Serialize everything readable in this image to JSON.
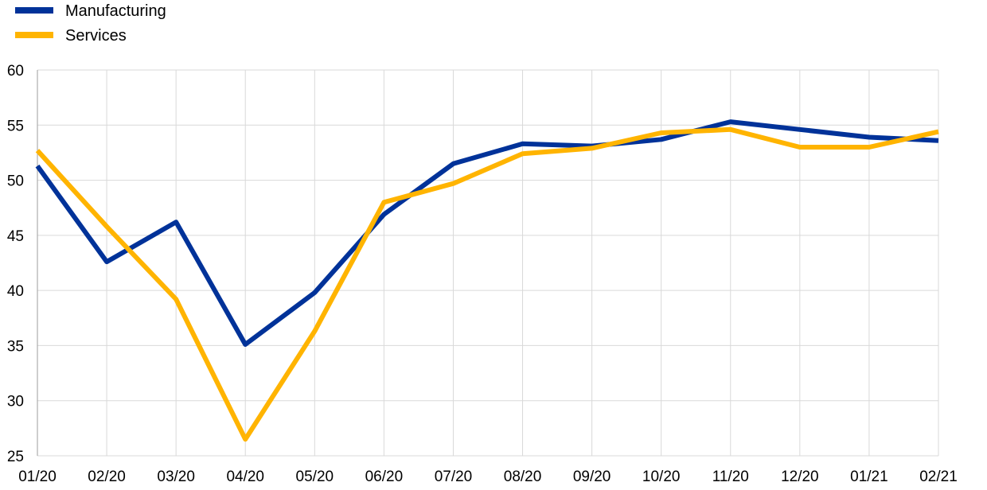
{
  "chart_data": {
    "type": "line",
    "title": "",
    "xlabel": "",
    "ylabel": "",
    "categories": [
      "01/20",
      "02/20",
      "03/20",
      "04/20",
      "05/20",
      "06/20",
      "07/20",
      "08/20",
      "09/20",
      "10/20",
      "11/20",
      "12/20",
      "01/21",
      "02/21"
    ],
    "series": [
      {
        "name": "Manufacturing",
        "color": "#003299",
        "values": [
          51.3,
          42.6,
          46.2,
          35.1,
          39.8,
          46.9,
          51.5,
          53.3,
          53.1,
          53.7,
          55.3,
          54.6,
          53.9,
          53.6
        ]
      },
      {
        "name": "Services",
        "color": "#FFB400",
        "values": [
          52.7,
          45.8,
          39.2,
          26.5,
          36.3,
          48.0,
          49.7,
          52.4,
          52.9,
          54.3,
          54.6,
          53.0,
          53.0,
          54.4
        ]
      }
    ],
    "ylim": [
      25,
      60
    ],
    "yticks": [
      "25",
      "30",
      "35",
      "40",
      "45",
      "50",
      "55",
      "60"
    ],
    "grid": true,
    "legend": "top-left"
  }
}
